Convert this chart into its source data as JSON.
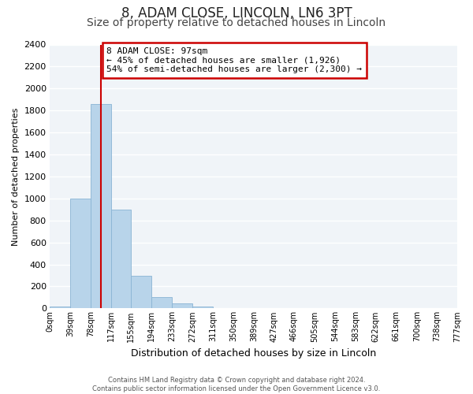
{
  "title1": "8, ADAM CLOSE, LINCOLN, LN6 3PT",
  "title2": "Size of property relative to detached houses in Lincoln",
  "xlabel": "Distribution of detached houses by size in Lincoln",
  "ylabel": "Number of detached properties",
  "bins": [
    0,
    39,
    78,
    117,
    155,
    194,
    233,
    272,
    311,
    350,
    389,
    427,
    466,
    505,
    544,
    583,
    622,
    661,
    700,
    738,
    777
  ],
  "bin_labels": [
    "0sqm",
    "39sqm",
    "78sqm",
    "117sqm",
    "155sqm",
    "194sqm",
    "233sqm",
    "272sqm",
    "311sqm",
    "350sqm",
    "389sqm",
    "427sqm",
    "466sqm",
    "505sqm",
    "544sqm",
    "583sqm",
    "622sqm",
    "661sqm",
    "700sqm",
    "738sqm",
    "777sqm"
  ],
  "counts": [
    20,
    1000,
    1860,
    900,
    300,
    100,
    45,
    20,
    0,
    0,
    0,
    0,
    0,
    0,
    0,
    0,
    0,
    0,
    0,
    0
  ],
  "bar_color": "#b8d4ea",
  "bar_edgecolor": "#8ab4d4",
  "vline_x": 97,
  "vline_color": "#cc0000",
  "ylim": [
    0,
    2400
  ],
  "yticks": [
    0,
    200,
    400,
    600,
    800,
    1000,
    1200,
    1400,
    1600,
    1800,
    2000,
    2200,
    2400
  ],
  "annotation_title": "8 ADAM CLOSE: 97sqm",
  "annotation_line1": "← 45% of detached houses are smaller (1,926)",
  "annotation_line2": "54% of semi-detached houses are larger (2,300) →",
  "annotation_box_facecolor": "#ffffff",
  "annotation_box_edgecolor": "#cc0000",
  "footer1": "Contains HM Land Registry data © Crown copyright and database right 2024.",
  "footer2": "Contains public sector information licensed under the Open Government Licence v3.0.",
  "bg_color": "#ffffff",
  "plot_bg_color": "#f0f4f8",
  "grid_color": "#ffffff",
  "title1_fontsize": 12,
  "title2_fontsize": 10,
  "ylabel_fontsize": 8,
  "xlabel_fontsize": 9
}
